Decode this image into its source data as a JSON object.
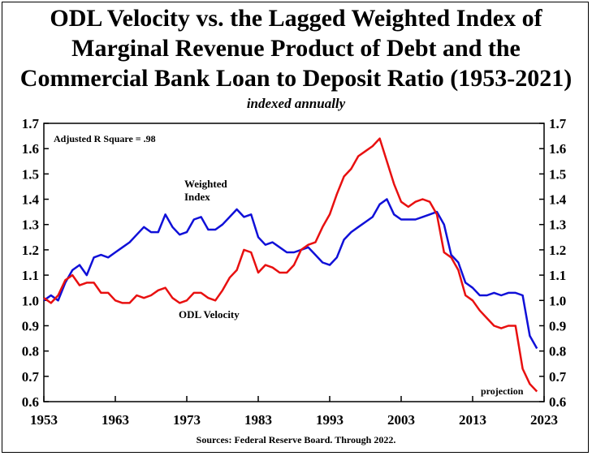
{
  "chart_data": {
    "type": "line",
    "title_lines": [
      "ODL Velocity vs. the Lagged Weighted Index of",
      "Marginal Revenue Product of Debt and the",
      "Commercial Bank Loan to Deposit Ratio (1953-2021)"
    ],
    "subtitle": "indexed annually",
    "source": "Sources: Federal Reserve Board. Through 2022.",
    "annotation_r2": "Adjusted R Square = .98",
    "annotation_projection": "projection",
    "label_weighted_line1": "Weighted",
    "label_weighted_line2": "Index",
    "label_velocity": "ODL Velocity",
    "xlim": [
      1953,
      2023
    ],
    "ylim": [
      0.6,
      1.7
    ],
    "x_ticks": [
      1953,
      1963,
      1973,
      1983,
      1993,
      2003,
      2013,
      2023
    ],
    "x_tick_labels": [
      "1953",
      "1963",
      "1973",
      "1983",
      "1993",
      "2003",
      "2013",
      "2023"
    ],
    "y_ticks": [
      0.6,
      0.7,
      0.8,
      0.9,
      1.0,
      1.1,
      1.2,
      1.3,
      1.4,
      1.5,
      1.6,
      1.7
    ],
    "y_tick_labels": [
      "0.6",
      "0.7",
      "0.8",
      "0.9",
      "1.0",
      "1.1",
      "1.2",
      "1.3",
      "1.4",
      "1.5",
      "1.6",
      "1.7"
    ],
    "series": [
      {
        "name": "Weighted Index",
        "color": "#1010d8",
        "x": [
          1953,
          1954,
          1955,
          1956,
          1957,
          1958,
          1959,
          1960,
          1961,
          1962,
          1963,
          1964,
          1965,
          1966,
          1967,
          1968,
          1969,
          1970,
          1971,
          1972,
          1973,
          1974,
          1975,
          1976,
          1977,
          1978,
          1979,
          1980,
          1981,
          1982,
          1983,
          1984,
          1985,
          1986,
          1987,
          1988,
          1989,
          1990,
          1991,
          1992,
          1993,
          1994,
          1995,
          1996,
          1997,
          1998,
          1999,
          2000,
          2001,
          2002,
          2003,
          2004,
          2005,
          2006,
          2007,
          2008,
          2009,
          2010,
          2011,
          2012,
          2013,
          2014,
          2015,
          2016,
          2017,
          2018,
          2019,
          2020,
          2021,
          2022
        ],
        "values": [
          1.0,
          1.02,
          1.0,
          1.07,
          1.12,
          1.14,
          1.1,
          1.17,
          1.18,
          1.17,
          1.19,
          1.21,
          1.23,
          1.26,
          1.29,
          1.27,
          1.27,
          1.34,
          1.29,
          1.26,
          1.27,
          1.32,
          1.33,
          1.28,
          1.28,
          1.3,
          1.33,
          1.36,
          1.33,
          1.34,
          1.25,
          1.22,
          1.23,
          1.21,
          1.19,
          1.19,
          1.2,
          1.21,
          1.18,
          1.15,
          1.14,
          1.17,
          1.24,
          1.27,
          1.29,
          1.31,
          1.33,
          1.38,
          1.4,
          1.34,
          1.32,
          1.32,
          1.32,
          1.33,
          1.34,
          1.35,
          1.3,
          1.18,
          1.15,
          1.07,
          1.05,
          1.02,
          1.02,
          1.03,
          1.02,
          1.03,
          1.03,
          1.02,
          0.86,
          0.81
        ]
      },
      {
        "name": "ODL Velocity",
        "color": "#e81010",
        "x": [
          1953,
          1954,
          1955,
          1956,
          1957,
          1958,
          1959,
          1960,
          1961,
          1962,
          1963,
          1964,
          1965,
          1966,
          1967,
          1968,
          1969,
          1970,
          1971,
          1972,
          1973,
          1974,
          1975,
          1976,
          1977,
          1978,
          1979,
          1980,
          1981,
          1982,
          1983,
          1984,
          1985,
          1986,
          1987,
          1988,
          1989,
          1990,
          1991,
          1992,
          1993,
          1994,
          1995,
          1996,
          1997,
          1998,
          1999,
          2000,
          2001,
          2002,
          2003,
          2004,
          2005,
          2006,
          2007,
          2008,
          2009,
          2010,
          2011,
          2012,
          2013,
          2014,
          2015,
          2016,
          2017,
          2018,
          2019,
          2020,
          2021,
          2022
        ],
        "values": [
          1.01,
          0.99,
          1.02,
          1.08,
          1.1,
          1.06,
          1.07,
          1.07,
          1.03,
          1.03,
          1.0,
          0.99,
          0.99,
          1.02,
          1.01,
          1.02,
          1.04,
          1.05,
          1.01,
          0.99,
          1.0,
          1.03,
          1.03,
          1.01,
          1.0,
          1.04,
          1.09,
          1.12,
          1.2,
          1.19,
          1.11,
          1.14,
          1.13,
          1.11,
          1.11,
          1.14,
          1.2,
          1.22,
          1.23,
          1.29,
          1.34,
          1.42,
          1.49,
          1.52,
          1.57,
          1.59,
          1.61,
          1.64,
          1.55,
          1.46,
          1.39,
          1.37,
          1.39,
          1.4,
          1.39,
          1.34,
          1.19,
          1.17,
          1.12,
          1.02,
          1.0,
          0.96,
          0.93,
          0.9,
          0.89,
          0.9,
          0.9,
          0.73,
          0.67,
          0.64
        ]
      }
    ]
  }
}
